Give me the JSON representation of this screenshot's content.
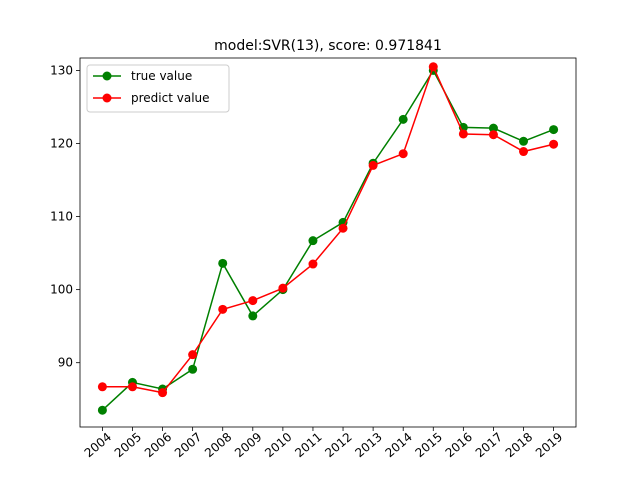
{
  "chart_data": {
    "type": "line",
    "title": "model:SVR(13), score: 0.971841",
    "xlabel": "",
    "ylabel": "",
    "categories": [
      "2004",
      "2005",
      "2006",
      "2007",
      "2008",
      "2009",
      "2010",
      "2011",
      "2012",
      "2013",
      "2014",
      "2015",
      "2016",
      "2017",
      "2018",
      "2019"
    ],
    "ylim": [
      81.2,
      131.7
    ],
    "yticks": [
      90,
      100,
      110,
      120,
      130
    ],
    "grid": false,
    "legend_position": "upper-left",
    "series": [
      {
        "name": "true value",
        "color": "#008000",
        "values": [
          83.5,
          87.3,
          86.4,
          89.1,
          103.6,
          96.4,
          100.0,
          106.7,
          109.2,
          117.3,
          123.3,
          130.0,
          122.2,
          122.1,
          120.3,
          121.9
        ]
      },
      {
        "name": "predict value",
        "color": "#ff0000",
        "values": [
          86.7,
          86.7,
          85.9,
          91.1,
          97.3,
          98.5,
          100.2,
          103.5,
          108.4,
          117.0,
          118.6,
          130.5,
          121.3,
          121.2,
          118.9,
          119.9
        ]
      }
    ]
  }
}
